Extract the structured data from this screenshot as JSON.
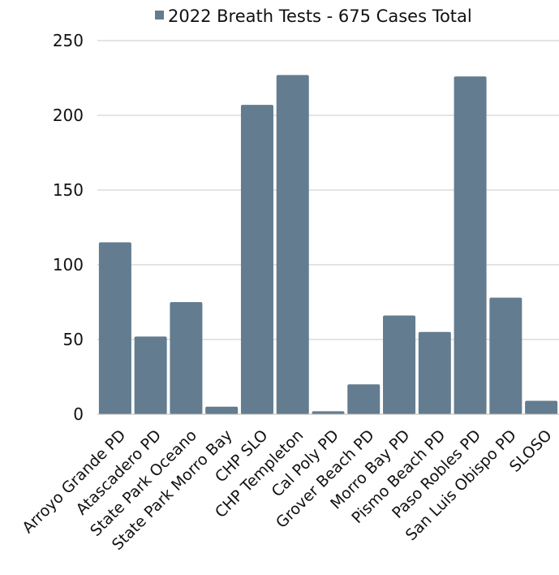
{
  "chart_data": {
    "type": "bar",
    "categories": [
      "Arroyo Grande PD",
      "Atascadero PD",
      "State Park Oceano",
      "State Park Morro Bay",
      "CHP SLO",
      "CHP Templeton",
      "Cal Poly PD",
      "Grover Beach PD",
      "Morro Bay PD",
      "Pismo Beach PD",
      "Paso Robles PD",
      "San Luis Obispo PD",
      "SLOSO"
    ],
    "series": [
      {
        "name": "2022 Breath Tests - 675 Cases Total",
        "values": [
          115,
          52,
          75,
          5,
          207,
          227,
          2,
          20,
          66,
          55,
          226,
          78,
          9
        ]
      }
    ],
    "yticks": [
      "0",
      "50",
      "100",
      "150",
      "200",
      "250"
    ],
    "ylim": [
      0,
      250
    ],
    "grid": true,
    "legend_position": "top",
    "colors": {
      "bar": "#637c8f",
      "grid": "#c8c8c8",
      "axis": "#b5b5b5",
      "text": "#111111"
    }
  }
}
